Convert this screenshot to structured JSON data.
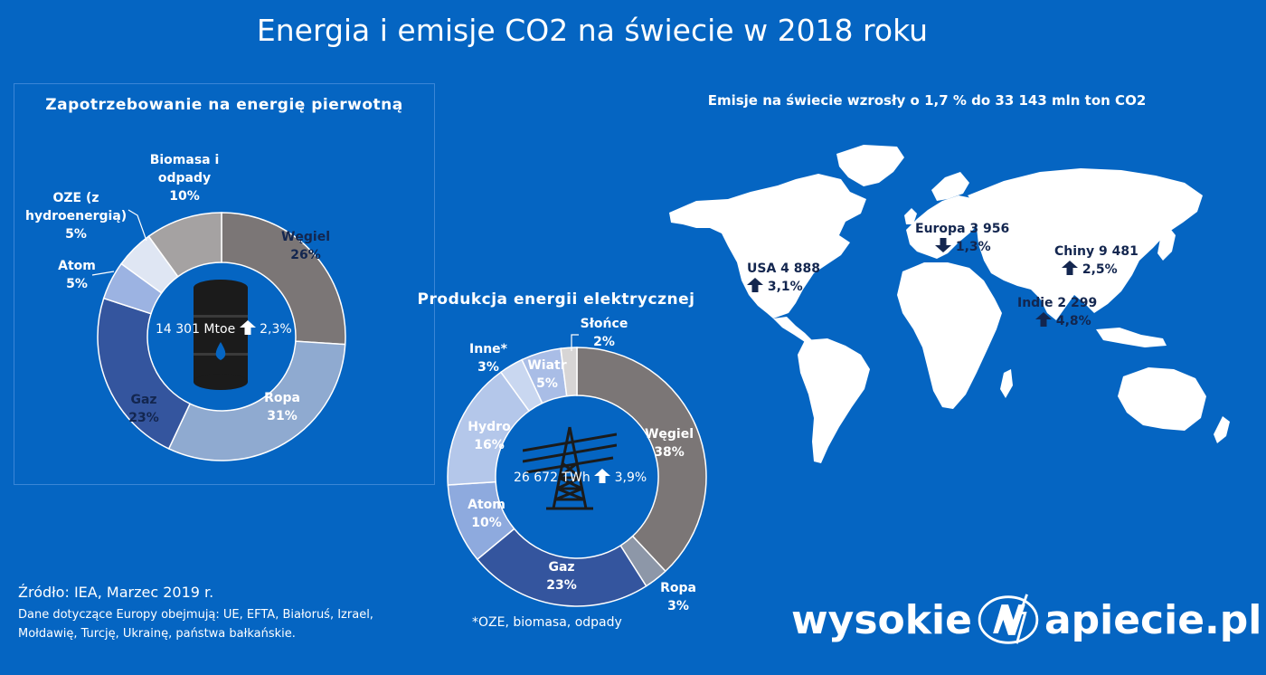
{
  "title": "Energia i emisje CO2 na świecie w 2018 roku",
  "colors": {
    "background": "#0565c2",
    "map_land": "#ffffff",
    "dark_text": "#13264f"
  },
  "chart_data": [
    {
      "type": "pie",
      "variant": "donut",
      "title": "Zapotrzebowanie na energię pierwotną",
      "center_label": "14 301 Mtoe",
      "center_change": "2,3%",
      "center_change_direction": "up",
      "center_icon": "oil-barrel-icon",
      "slices": [
        {
          "name": "Węgiel",
          "value": 26,
          "label": "26%",
          "color": "#7b7676"
        },
        {
          "name": "Ropa",
          "value": 31,
          "label": "31%",
          "color": "#8faad0"
        },
        {
          "name": "Gaz",
          "value": 23,
          "label": "23%",
          "color": "#34559e"
        },
        {
          "name": "Atom",
          "value": 5,
          "label": "5%",
          "color": "#9cb3e2"
        },
        {
          "name": "OZE (z hydroenergią)",
          "value": 5,
          "label": "5%",
          "color": "#dfe6f3"
        },
        {
          "name": "Biomasa i odpady",
          "value": 10,
          "label": "10%",
          "color": "#a5a2a2"
        }
      ]
    },
    {
      "type": "pie",
      "variant": "donut",
      "title": "Produkcja energii elektrycznej",
      "center_label": "26 672 TWh",
      "center_change": "3,9%",
      "center_change_direction": "up",
      "center_icon": "power-pylon-icon",
      "footnote": "*OZE, biomasa, odpady",
      "slices": [
        {
          "name": "Węgiel",
          "value": 38,
          "label": "38%",
          "color": "#7b7676"
        },
        {
          "name": "Ropa",
          "value": 3,
          "label": "3%",
          "color": "#8d97a8"
        },
        {
          "name": "Gaz",
          "value": 23,
          "label": "23%",
          "color": "#34559e"
        },
        {
          "name": "Atom",
          "value": 10,
          "label": "10%",
          "color": "#8eaade"
        },
        {
          "name": "Hydro",
          "value": 16,
          "label": "16%",
          "color": "#b4c7ea"
        },
        {
          "name": "Inne*",
          "value": 3,
          "label": "3%",
          "color": "#c9d7f0"
        },
        {
          "name": "Wiatr",
          "value": 5,
          "label": "5%",
          "color": "#a9bde6"
        },
        {
          "name": "Słońce",
          "value": 2,
          "label": "2%",
          "color": "#d7d5d5"
        }
      ]
    }
  ],
  "map": {
    "title": "Emisje na świecie wzrosły o 1,7 % do 33 143 mln ton CO2",
    "regions": [
      {
        "name": "USA",
        "value": "4 888",
        "change": "3,1%",
        "direction": "up"
      },
      {
        "name": "Europa",
        "value": "3 956",
        "change": "1,3%",
        "direction": "down"
      },
      {
        "name": "Chiny",
        "value": "9 481",
        "change": "2,5%",
        "direction": "up"
      },
      {
        "name": "Indie",
        "value": "2 299",
        "change": "4,8%",
        "direction": "up"
      }
    ]
  },
  "source": {
    "line1": "Źródło: IEA, Marzec 2019 r.",
    "line2": "Dane dotyczące Europy obejmują: UE, EFTA, Białoruś, Izrael, Mołdawię, Turcję, Ukrainę, państwa bałkańskie."
  },
  "logo": {
    "left": "wysokie",
    "right": "apiecie.pl"
  }
}
